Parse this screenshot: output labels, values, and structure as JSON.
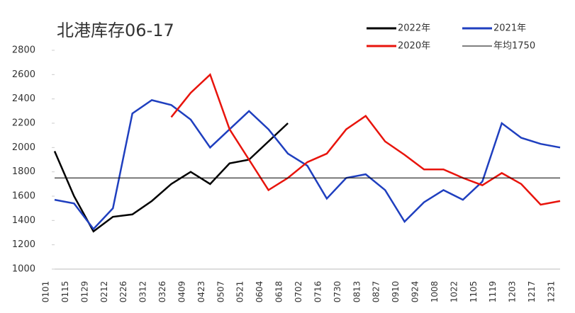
{
  "chart_data": {
    "type": "line",
    "title": "北港库存06-17",
    "categories": [
      "0101",
      "0115",
      "0129",
      "0212",
      "0226",
      "0312",
      "0326",
      "0409",
      "0423",
      "0507",
      "0521",
      "0604",
      "0618",
      "0702",
      "0716",
      "0730",
      "0813",
      "0827",
      "0910",
      "0924",
      "1008",
      "1022",
      "1105",
      "1119",
      "1203",
      "1217",
      "1231"
    ],
    "series": [
      {
        "name": "2022年",
        "color": "#000000",
        "values": [
          1970,
          1600,
          1310,
          1430,
          1450,
          1560,
          1700,
          1800,
          1700,
          1870,
          1900,
          2050,
          2200,
          null,
          null,
          null,
          null,
          null,
          null,
          null,
          null,
          null,
          null,
          null,
          null,
          null,
          null
        ]
      },
      {
        "name": "2021年",
        "color": "#1f3fbf",
        "values": [
          1570,
          1540,
          1330,
          1500,
          2280,
          2390,
          2350,
          2230,
          2000,
          2150,
          2300,
          2150,
          1950,
          1850,
          1580,
          1750,
          1780,
          1650,
          1390,
          1550,
          1650,
          1570,
          1720,
          2200,
          2080,
          2030,
          2000
        ]
      },
      {
        "name": "2020年",
        "color": "#e8140c",
        "values": [
          null,
          null,
          null,
          null,
          null,
          null,
          2250,
          2450,
          2600,
          2150,
          1900,
          1650,
          1750,
          1880,
          1950,
          2150,
          2260,
          2050,
          1940,
          1820,
          1820,
          1750,
          1690,
          1790,
          1700,
          1530,
          1560
        ]
      },
      {
        "name": "年均1750",
        "color": "#000000",
        "values": [
          1750,
          1750,
          1750,
          1750,
          1750,
          1750,
          1750,
          1750,
          1750,
          1750,
          1750,
          1750,
          1750,
          1750,
          1750,
          1750,
          1750,
          1750,
          1750,
          1750,
          1750,
          1750,
          1750,
          1750,
          1750,
          1750,
          1750
        ]
      }
    ],
    "ylim": [
      1000,
      2800
    ],
    "yticks": [
      1000,
      1200,
      1400,
      1600,
      1800,
      2000,
      2200,
      2400,
      2600,
      2800
    ],
    "legend": "top-right"
  }
}
